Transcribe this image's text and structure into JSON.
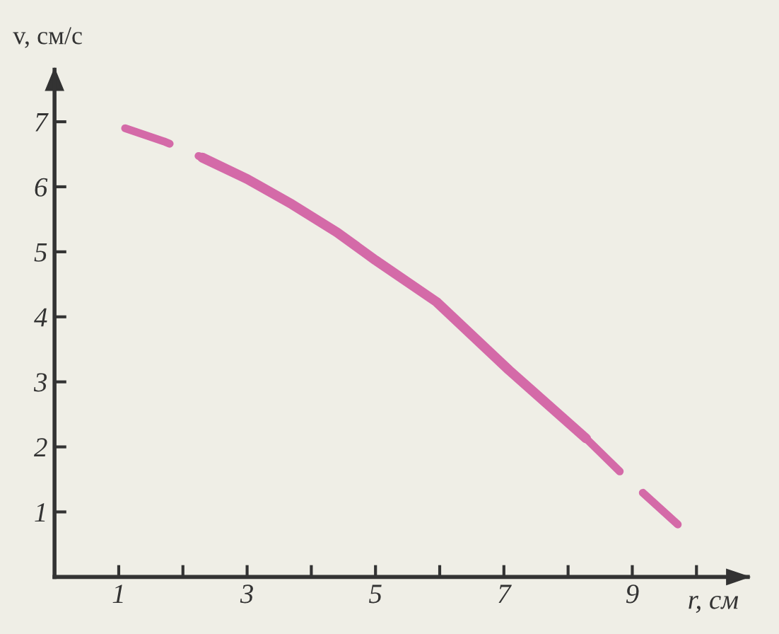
{
  "chart_data": {
    "type": "line",
    "xlabel": "r, см",
    "ylabel": "v, см/с",
    "series": [
      {
        "color": "#d46aa8",
        "line_style": "dashed",
        "x": [
          1.1,
          1.7,
          2.3
        ],
        "values": [
          6.9,
          6.7,
          6.45
        ]
      },
      {
        "color": "#d46aa8",
        "line_style": "solid",
        "x": [
          2.3,
          3.0,
          3.7,
          4.4,
          5.0,
          5.95,
          7.08,
          8.28
        ],
        "values": [
          6.45,
          6.12,
          5.73,
          5.3,
          4.87,
          4.23,
          3.18,
          2.13
        ]
      },
      {
        "color": "#d46aa8",
        "line_style": "dashed",
        "x": [
          8.28,
          8.9,
          9.75
        ],
        "values": [
          2.13,
          1.53,
          0.77
        ]
      }
    ],
    "xlim": [
      0,
      10.8
    ],
    "ylim": [
      0,
      7.8
    ],
    "xticks": [
      {
        "value": 1,
        "label": "1"
      },
      {
        "value": 2,
        "label": null
      },
      {
        "value": 3,
        "label": "3"
      },
      {
        "value": 4,
        "label": null
      },
      {
        "value": 5,
        "label": "5"
      },
      {
        "value": 6,
        "label": null
      },
      {
        "value": 7,
        "label": "7"
      },
      {
        "value": 8,
        "label": null
      },
      {
        "value": 9,
        "label": "9"
      },
      {
        "value": 10,
        "label": null
      }
    ],
    "yticks": [
      1,
      2,
      3,
      4,
      5,
      6,
      7
    ],
    "grid": false,
    "marker": "none"
  }
}
